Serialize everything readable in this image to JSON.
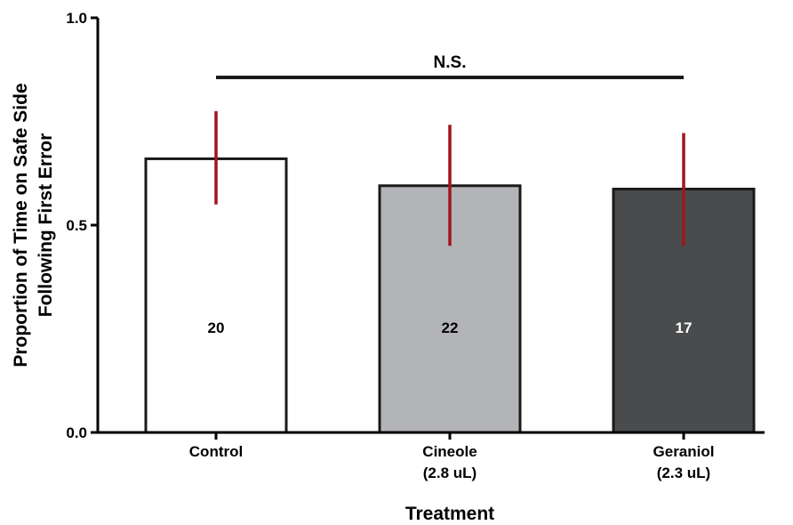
{
  "chart_data": {
    "type": "bar",
    "categories": [
      [
        "Control"
      ],
      [
        "Cineole",
        "(2.8 uL)"
      ],
      [
        "Geraniol",
        "(2.3 uL)"
      ]
    ],
    "values": [
      0.66,
      0.595,
      0.587
    ],
    "error_high": [
      0.775,
      0.742,
      0.722
    ],
    "error_low": [
      0.55,
      0.45,
      0.45
    ],
    "bar_labels": [
      "20",
      "22",
      "17"
    ],
    "bar_colors": [
      "#ffffff",
      "#b3b4b8",
      "#4a4b4d"
    ],
    "bar_label_colors": [
      "#000000",
      "#000000",
      "#ffffff"
    ],
    "error_color": "#a3141c",
    "xlabel": "Treatment",
    "ylabel": [
      "Proportion of Time on Safe Side",
      "Following First Error"
    ],
    "ylim": [
      0.0,
      1.0
    ],
    "yticks": [
      0.0,
      0.5,
      1.0
    ],
    "ytick_labels": [
      "0.0",
      "0.5",
      "1.0"
    ],
    "significance": {
      "label": "N.S.",
      "from": 0,
      "to": 2
    },
    "grid": false
  }
}
